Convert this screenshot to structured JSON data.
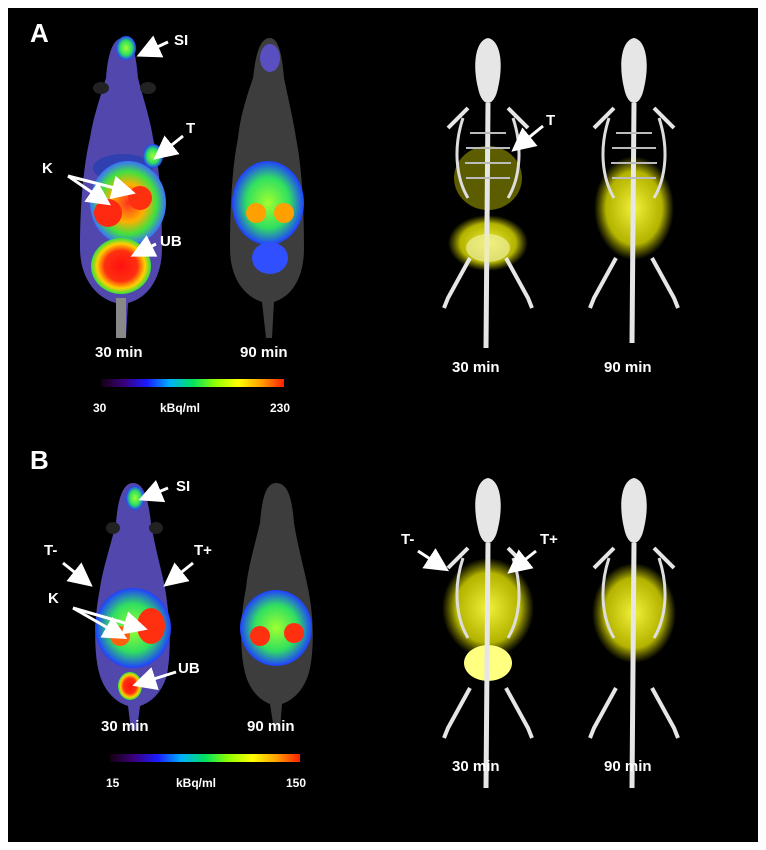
{
  "panels": [
    {
      "letter": "A",
      "labels": {
        "si": "SI",
        "t": "T",
        "k": "K",
        "ub": "UB",
        "t_right": "T"
      },
      "times": [
        "30 min",
        "90 min",
        "30 min",
        "90 min"
      ],
      "scale": {
        "min": "30",
        "unit": "kBq/ml",
        "max": "230"
      }
    },
    {
      "letter": "B",
      "labels": {
        "si": "SI",
        "t_minus": "T-",
        "t_plus": "T+",
        "k": "K",
        "ub": "UB",
        "t_minus_right": "T-",
        "t_plus_right": "T+"
      },
      "times": [
        "30 min",
        "90 min",
        "30 min",
        "90 min"
      ],
      "scale": {
        "min": "15",
        "unit": "kBq/ml",
        "max": "150"
      }
    }
  ],
  "colors": {
    "background": "#000000",
    "skeleton": "#e6e6e6",
    "yellow_signal": "#ffff33",
    "pet_hot": "#ff2020",
    "pet_mid": "#40ff40",
    "pet_low": "#5a3fd0"
  }
}
